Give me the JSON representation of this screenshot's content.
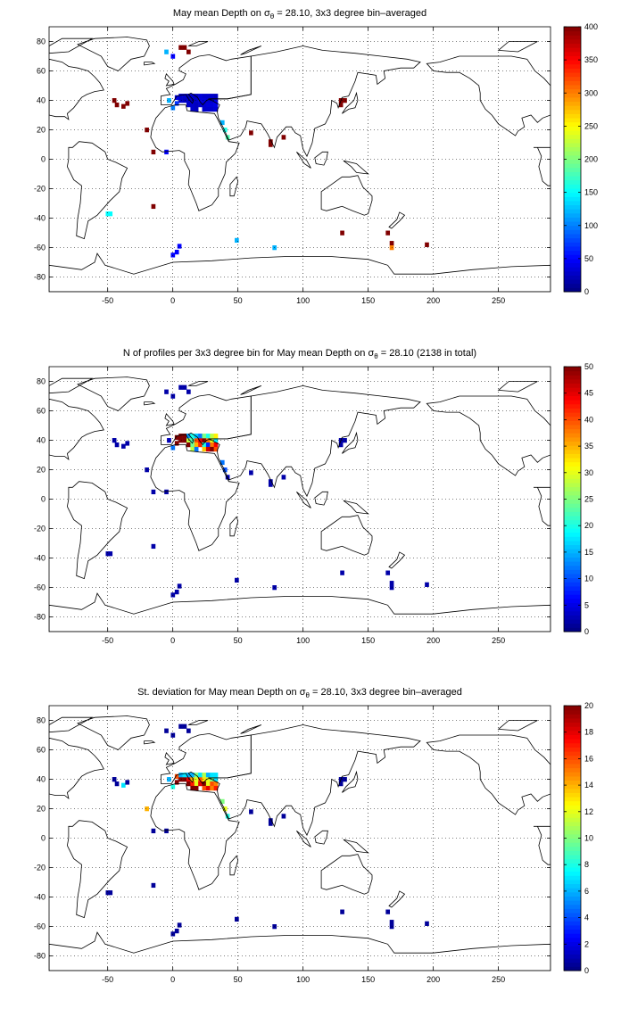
{
  "chart_data": [
    {
      "type": "heatmap",
      "title": {
        "pre": "May mean Depth on ",
        "sigma": "σ",
        "sub": "θ",
        "post": " = 28.10, 3x3 degree bin–averaged"
      },
      "xlim": [
        -95,
        290
      ],
      "ylim": [
        -90,
        90
      ],
      "xticks": [
        -50,
        0,
        50,
        100,
        150,
        200,
        250
      ],
      "yticks": [
        -80,
        -60,
        -40,
        -20,
        0,
        20,
        40,
        60,
        80
      ],
      "grid": true,
      "colormap": "jet",
      "clim": [
        0,
        400
      ],
      "colorbar_ticks": [
        0,
        50,
        100,
        150,
        200,
        250,
        300,
        350,
        400
      ],
      "colorbar_position": "right",
      "cells": [
        [
          -45,
          40,
          400
        ],
        [
          -43,
          37,
          400
        ],
        [
          -38,
          36,
          400
        ],
        [
          -35,
          38,
          400
        ],
        [
          -20,
          20,
          400
        ],
        [
          -15,
          5,
          400
        ],
        [
          -15,
          -32,
          400
        ],
        [
          -5,
          73,
          120
        ],
        [
          -3,
          40,
          120
        ],
        [
          0,
          35,
          100
        ],
        [
          3,
          38,
          70
        ],
        [
          3,
          42,
          40
        ],
        [
          6,
          40,
          30
        ],
        [
          9,
          40,
          25
        ],
        [
          12,
          40,
          30
        ],
        [
          15,
          40,
          25
        ],
        [
          18,
          40,
          30
        ],
        [
          21,
          40,
          35
        ],
        [
          24,
          40,
          35
        ],
        [
          27,
          40,
          30
        ],
        [
          30,
          40,
          30
        ],
        [
          33,
          40,
          40
        ],
        [
          6,
          43,
          30
        ],
        [
          9,
          43,
          30
        ],
        [
          12,
          43,
          25
        ],
        [
          15,
          43,
          30
        ],
        [
          18,
          43,
          25
        ],
        [
          21,
          43,
          35
        ],
        [
          24,
          43,
          30
        ],
        [
          27,
          43,
          30
        ],
        [
          30,
          43,
          30
        ],
        [
          33,
          43,
          25
        ],
        [
          12,
          37,
          30
        ],
        [
          15,
          37,
          30
        ],
        [
          18,
          37,
          25
        ],
        [
          21,
          37,
          30
        ],
        [
          24,
          37,
          30
        ],
        [
          27,
          37,
          35
        ],
        [
          30,
          37,
          35
        ],
        [
          33,
          37,
          40
        ],
        [
          15,
          34,
          30
        ],
        [
          18,
          34,
          25
        ],
        [
          24,
          34,
          30
        ],
        [
          27,
          34,
          30
        ],
        [
          30,
          34,
          30
        ],
        [
          33,
          34,
          35
        ],
        [
          9,
          76,
          400
        ],
        [
          12,
          73,
          400
        ],
        [
          6,
          76,
          400
        ],
        [
          0,
          70,
          50
        ],
        [
          -5,
          5,
          50
        ],
        [
          -50,
          -37,
          150
        ],
        [
          -48,
          -37,
          150
        ],
        [
          0,
          -65,
          50
        ],
        [
          3,
          -63,
          50
        ],
        [
          5,
          -59,
          50
        ],
        [
          38,
          25,
          120
        ],
        [
          40,
          20,
          160
        ],
        [
          42,
          15,
          180
        ],
        [
          60,
          18,
          400
        ],
        [
          75,
          12,
          400
        ],
        [
          75,
          10,
          400
        ],
        [
          85,
          15,
          400
        ],
        [
          129,
          37,
          400
        ],
        [
          132,
          40,
          400
        ],
        [
          129,
          40,
          400
        ],
        [
          130,
          -50,
          400
        ],
        [
          165,
          -50,
          400
        ],
        [
          168,
          -57,
          400
        ],
        [
          168,
          -60,
          300
        ],
        [
          195,
          -58,
          400
        ],
        [
          49,
          -55,
          120
        ],
        [
          78,
          -60,
          120
        ]
      ]
    },
    {
      "type": "heatmap",
      "title": {
        "pre": "N of profiles per 3x3 degree bin for May mean Depth on ",
        "sigma": "σ",
        "sub": "θ",
        "post": " = 28.10 (2138 in total)"
      },
      "xlim": [
        -95,
        290
      ],
      "ylim": [
        -90,
        90
      ],
      "xticks": [
        -50,
        0,
        50,
        100,
        150,
        200,
        250
      ],
      "yticks": [
        -80,
        -60,
        -40,
        -20,
        0,
        20,
        40,
        60,
        80
      ],
      "grid": true,
      "colormap": "jet",
      "clim": [
        0,
        50
      ],
      "colorbar_ticks": [
        0,
        5,
        10,
        15,
        20,
        25,
        30,
        35,
        40,
        45,
        50
      ],
      "colorbar_position": "right",
      "cells": [
        [
          -45,
          40,
          2
        ],
        [
          -43,
          37,
          2
        ],
        [
          -38,
          36,
          2
        ],
        [
          -35,
          38,
          2
        ],
        [
          -20,
          20,
          2
        ],
        [
          -15,
          5,
          2
        ],
        [
          -15,
          -32,
          2
        ],
        [
          -5,
          73,
          2
        ],
        [
          -3,
          40,
          3
        ],
        [
          0,
          35,
          12
        ],
        [
          3,
          38,
          50
        ],
        [
          3,
          42,
          50
        ],
        [
          6,
          40,
          50
        ],
        [
          9,
          40,
          50
        ],
        [
          12,
          40,
          28
        ],
        [
          15,
          40,
          22
        ],
        [
          18,
          40,
          40
        ],
        [
          21,
          40,
          45
        ],
        [
          24,
          40,
          50
        ],
        [
          27,
          40,
          38
        ],
        [
          30,
          40,
          30
        ],
        [
          33,
          40,
          18
        ],
        [
          6,
          43,
          50
        ],
        [
          9,
          43,
          50
        ],
        [
          12,
          43,
          14
        ],
        [
          15,
          43,
          20
        ],
        [
          18,
          43,
          16
        ],
        [
          21,
          43,
          12
        ],
        [
          24,
          43,
          25
        ],
        [
          27,
          43,
          20
        ],
        [
          30,
          43,
          28
        ],
        [
          33,
          43,
          32
        ],
        [
          12,
          37,
          50
        ],
        [
          15,
          37,
          24
        ],
        [
          18,
          37,
          35
        ],
        [
          21,
          37,
          42
        ],
        [
          24,
          37,
          20
        ],
        [
          27,
          37,
          8
        ],
        [
          30,
          37,
          38
        ],
        [
          33,
          37,
          44
        ],
        [
          15,
          34,
          28
        ],
        [
          18,
          34,
          12
        ],
        [
          24,
          34,
          34
        ],
        [
          27,
          34,
          46
        ],
        [
          30,
          34,
          50
        ],
        [
          33,
          34,
          40
        ],
        [
          9,
          76,
          2
        ],
        [
          12,
          73,
          2
        ],
        [
          6,
          76,
          2
        ],
        [
          0,
          70,
          2
        ],
        [
          -5,
          5,
          2
        ],
        [
          -50,
          -37,
          2
        ],
        [
          -48,
          -37,
          2
        ],
        [
          0,
          -65,
          2
        ],
        [
          3,
          -63,
          2
        ],
        [
          5,
          -59,
          2
        ],
        [
          38,
          25,
          12
        ],
        [
          40,
          20,
          10
        ],
        [
          42,
          15,
          3
        ],
        [
          60,
          18,
          2
        ],
        [
          75,
          12,
          2
        ],
        [
          75,
          10,
          2
        ],
        [
          85,
          15,
          2
        ],
        [
          129,
          37,
          2
        ],
        [
          132,
          40,
          2
        ],
        [
          129,
          40,
          2
        ],
        [
          130,
          -50,
          2
        ],
        [
          165,
          -50,
          2
        ],
        [
          168,
          -57,
          2
        ],
        [
          168,
          -60,
          2
        ],
        [
          195,
          -58,
          2
        ],
        [
          49,
          -55,
          2
        ],
        [
          78,
          -60,
          2
        ]
      ]
    },
    {
      "type": "heatmap",
      "title": {
        "pre": "St. deviation for May mean Depth on ",
        "sigma": "σ",
        "sub": "θ",
        "post": " = 28.10, 3x3 degree bin–averaged"
      },
      "xlim": [
        -95,
        290
      ],
      "ylim": [
        -90,
        90
      ],
      "xticks": [
        -50,
        0,
        50,
        100,
        150,
        200,
        250
      ],
      "yticks": [
        -80,
        -60,
        -40,
        -20,
        0,
        20,
        40,
        60,
        80
      ],
      "grid": true,
      "colormap": "jet",
      "clim": [
        0,
        20
      ],
      "colorbar_ticks": [
        0,
        2,
        4,
        6,
        8,
        10,
        12,
        14,
        16,
        18,
        20
      ],
      "colorbar_position": "right",
      "cells": [
        [
          -45,
          40,
          0.5
        ],
        [
          -43,
          37,
          0.5
        ],
        [
          -38,
          36,
          7
        ],
        [
          -35,
          38,
          0.5
        ],
        [
          -20,
          20,
          14
        ],
        [
          -15,
          5,
          0.5
        ],
        [
          -15,
          -32,
          0.5
        ],
        [
          -5,
          73,
          0.5
        ],
        [
          -3,
          40,
          6
        ],
        [
          0,
          35,
          8
        ],
        [
          3,
          38,
          20
        ],
        [
          3,
          42,
          16
        ],
        [
          6,
          40,
          20
        ],
        [
          9,
          40,
          20
        ],
        [
          12,
          40,
          18
        ],
        [
          15,
          40,
          14
        ],
        [
          18,
          40,
          12
        ],
        [
          21,
          40,
          16
        ],
        [
          24,
          40,
          13
        ],
        [
          27,
          40,
          12
        ],
        [
          30,
          40,
          10
        ],
        [
          33,
          40,
          7
        ],
        [
          6,
          43,
          6
        ],
        [
          9,
          43,
          7
        ],
        [
          12,
          43,
          6
        ],
        [
          15,
          43,
          6
        ],
        [
          18,
          43,
          10
        ],
        [
          21,
          43,
          7
        ],
        [
          24,
          43,
          11
        ],
        [
          27,
          43,
          6
        ],
        [
          30,
          43,
          7
        ],
        [
          33,
          43,
          7
        ],
        [
          12,
          37,
          20
        ],
        [
          15,
          37,
          17
        ],
        [
          18,
          37,
          12
        ],
        [
          21,
          37,
          18
        ],
        [
          24,
          37,
          20
        ],
        [
          27,
          37,
          12
        ],
        [
          30,
          37,
          16
        ],
        [
          33,
          37,
          15
        ],
        [
          15,
          34,
          20
        ],
        [
          18,
          34,
          20
        ],
        [
          24,
          34,
          16
        ],
        [
          27,
          34,
          18
        ],
        [
          30,
          34,
          15
        ],
        [
          33,
          34,
          17
        ],
        [
          9,
          76,
          0.5
        ],
        [
          12,
          73,
          0.5
        ],
        [
          6,
          76,
          0.5
        ],
        [
          0,
          70,
          0.5
        ],
        [
          -5,
          5,
          0.5
        ],
        [
          -50,
          -37,
          0.5
        ],
        [
          -48,
          -37,
          0.5
        ],
        [
          0,
          -65,
          0.5
        ],
        [
          3,
          -63,
          0.5
        ],
        [
          5,
          -59,
          0.5
        ],
        [
          38,
          25,
          10
        ],
        [
          40,
          20,
          12
        ],
        [
          42,
          15,
          8
        ],
        [
          60,
          18,
          0.5
        ],
        [
          75,
          12,
          0.5
        ],
        [
          75,
          10,
          0.5
        ],
        [
          85,
          15,
          0.5
        ],
        [
          129,
          37,
          0.5
        ],
        [
          132,
          40,
          0.5
        ],
        [
          129,
          40,
          0.5
        ],
        [
          130,
          -50,
          0.5
        ],
        [
          165,
          -50,
          0.5
        ],
        [
          168,
          -57,
          0.5
        ],
        [
          168,
          -60,
          0.5
        ],
        [
          195,
          -58,
          0.5
        ],
        [
          49,
          -55,
          0.5
        ],
        [
          78,
          -60,
          0.5
        ]
      ]
    }
  ]
}
